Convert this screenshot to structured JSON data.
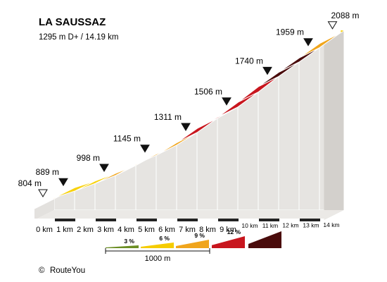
{
  "title": "LA SAUSSAZ",
  "subtitle": "1295 m D+ / 14.19 km",
  "credit": "RouteYou",
  "copyright_symbol": "©",
  "chart_data": {
    "type": "area",
    "title": "LA SAUSSAZ",
    "subtitle": "1295 m D+ / 14.19 km",
    "x_unit": "km",
    "y_unit": "m",
    "xlim": [
      0,
      14.19
    ],
    "grid": false,
    "x_ticks": [
      "0 km",
      "1 km",
      "2 km",
      "3 km",
      "4 km",
      "5 km",
      "6 km",
      "7 km",
      "8 km",
      "9 km",
      "10 km",
      "11 km",
      "12 km",
      "13 km",
      "14 km"
    ],
    "profile": [
      {
        "x": 0,
        "y": 804
      },
      {
        "x": 1,
        "y": 889
      },
      {
        "x": 2,
        "y": 940
      },
      {
        "x": 3,
        "y": 998
      },
      {
        "x": 4,
        "y": 1060
      },
      {
        "x": 5,
        "y": 1145
      },
      {
        "x": 6,
        "y": 1215
      },
      {
        "x": 7,
        "y": 1311
      },
      {
        "x": 8,
        "y": 1420
      },
      {
        "x": 9,
        "y": 1506
      },
      {
        "x": 10,
        "y": 1620
      },
      {
        "x": 11,
        "y": 1740
      },
      {
        "x": 12,
        "y": 1850
      },
      {
        "x": 13,
        "y": 1959
      },
      {
        "x": 14,
        "y": 2070
      },
      {
        "x": 14.19,
        "y": 2088
      }
    ],
    "segments": [
      {
        "from": 0,
        "to": 1,
        "gradient_class": 9
      },
      {
        "from": 1,
        "to": 2,
        "gradient_class": 6
      },
      {
        "from": 2,
        "to": 3,
        "gradient_class": 6
      },
      {
        "from": 3,
        "to": 4,
        "gradient_class": 9
      },
      {
        "from": 4,
        "to": 5,
        "gradient_class": 9
      },
      {
        "from": 5,
        "to": 6,
        "gradient_class": 9
      },
      {
        "from": 6,
        "to": 7,
        "gradient_class": 9
      },
      {
        "from": 7,
        "to": 8,
        "gradient_class": 12
      },
      {
        "from": 8,
        "to": 9,
        "gradient_class": 12
      },
      {
        "from": 9,
        "to": 10,
        "gradient_class": 12
      },
      {
        "from": 10,
        "to": 11,
        "gradient_class": 12
      },
      {
        "from": 11,
        "to": 12,
        "gradient_class": 15
      },
      {
        "from": 12,
        "to": 13,
        "gradient_class": 15
      },
      {
        "from": 13,
        "to": 14,
        "gradient_class": 9
      },
      {
        "from": 14,
        "to": 14.19,
        "gradient_class": 15
      },
      {
        "from": 14.19,
        "to": 14.19,
        "gradient_class": 6
      }
    ],
    "markers": [
      {
        "x": 0,
        "label": "804 m",
        "style": "outline"
      },
      {
        "x": 1,
        "label": "889 m",
        "style": "solid"
      },
      {
        "x": 3,
        "label": "998 m",
        "style": "solid"
      },
      {
        "x": 5,
        "label": "1145 m",
        "style": "solid"
      },
      {
        "x": 7,
        "label": "1311 m",
        "style": "solid"
      },
      {
        "x": 9,
        "label": "1506 m",
        "style": "solid"
      },
      {
        "x": 11,
        "label": "1740 m",
        "style": "solid"
      },
      {
        "x": 13,
        "label": "1959 m",
        "style": "solid"
      },
      {
        "x": 14.19,
        "label": "2088 m",
        "style": "outline"
      }
    ],
    "legend": [
      {
        "label": "3 %",
        "color": "#6b8e23"
      },
      {
        "label": "6 %",
        "color": "#f5cc00"
      },
      {
        "label": "9 %",
        "color": "#f0a51c"
      },
      {
        "label": "12 %",
        "color": "#c8161e"
      },
      {
        "label": "",
        "color": "#4a0c0c"
      }
    ],
    "scale_label": "1000 m"
  },
  "colors": {
    "3": "#8aa83a",
    "6": "#f8d20f",
    "9": "#f0a51c",
    "12": "#c8161e",
    "15": "#4a0c0c",
    "wall": "#e6e4e1",
    "wall_line": "#ffffff",
    "base_dark": "#222222"
  }
}
